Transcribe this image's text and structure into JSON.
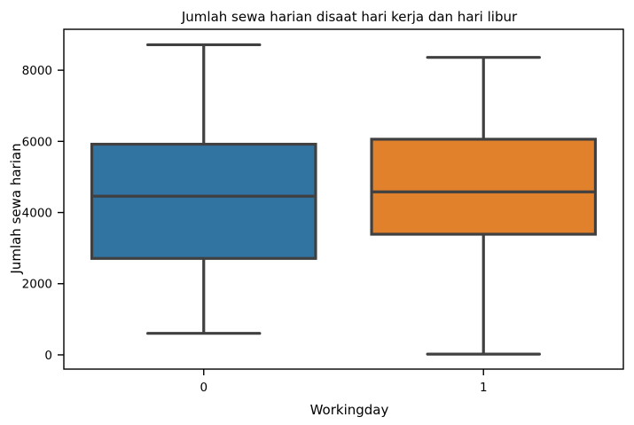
{
  "chart_data": {
    "type": "box",
    "title": "Jumlah sewa harian disaat hari kerja dan hari libur",
    "xlabel": "Workingday",
    "ylabel": "Jumlah sewa harian",
    "categories": [
      "0",
      "1"
    ],
    "ylim": [
      -400,
      9150
    ],
    "yticks": [
      0,
      2000,
      4000,
      6000,
      8000
    ],
    "grid": false,
    "colors": [
      "#3274a1",
      "#e1812c"
    ],
    "edge_color": "#404040",
    "boxes": [
      {
        "category": "0",
        "whisker_low": 605,
        "q1": 2710,
        "median": 4460,
        "q3": 5920,
        "whisker_high": 8715
      },
      {
        "category": "1",
        "whisker_low": 20,
        "q1": 3390,
        "median": 4580,
        "q3": 6060,
        "whisker_high": 8360
      }
    ]
  }
}
